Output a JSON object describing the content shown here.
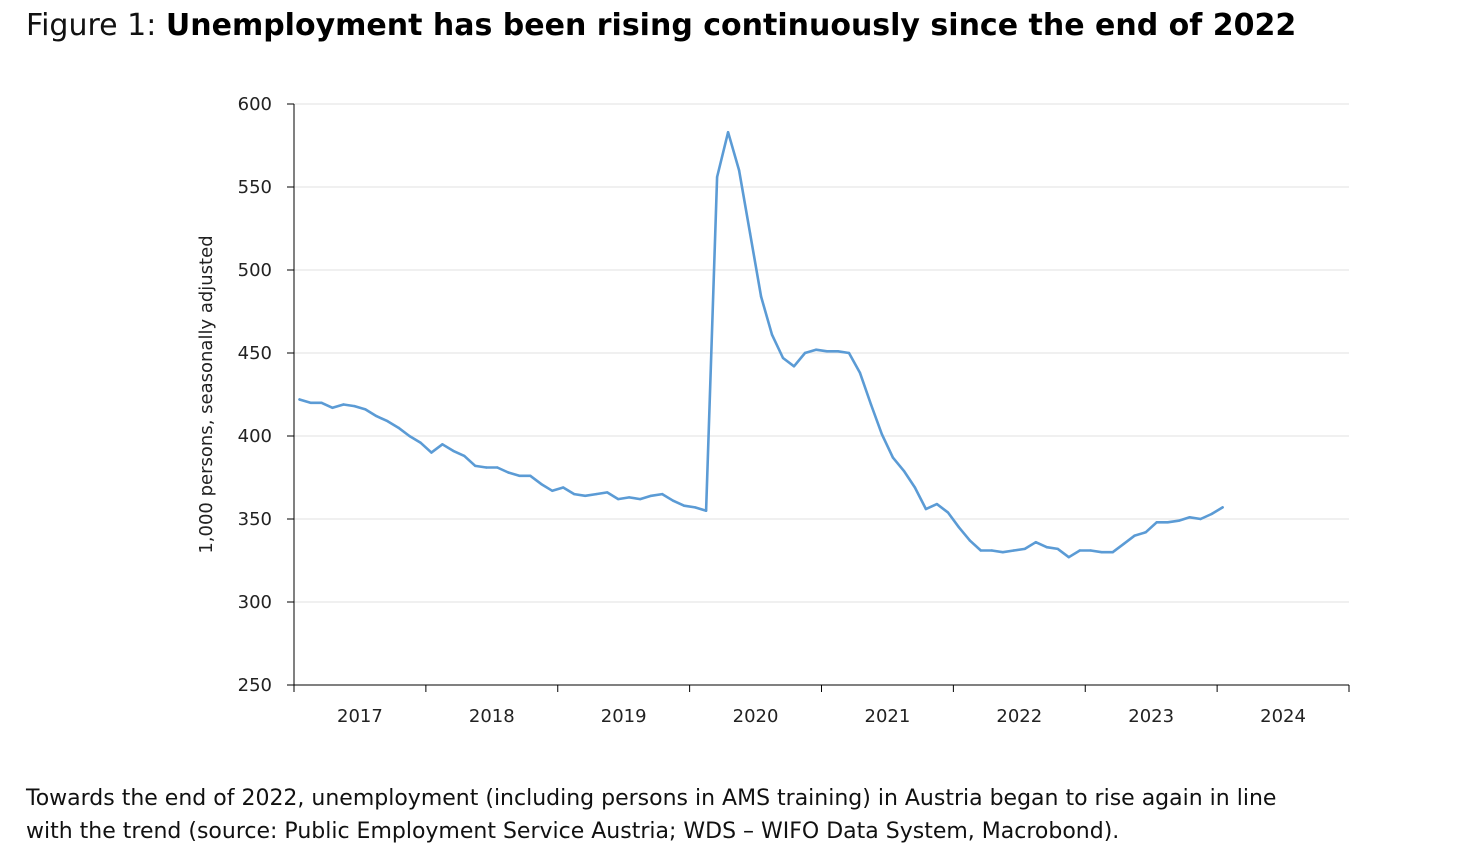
{
  "figure": {
    "label": "Figure 1: ",
    "heading": "Unemployment has been rising continuously since the end of 2022"
  },
  "caption": {
    "line1": "Towards the end of 2022, unemployment (including persons in AMS training) in Austria began to rise again in line",
    "line2": "with the trend (source: Public Employment Service Austria; WDS – WIFO Data System, Macrobond)."
  },
  "colors": {
    "series_line": "#5b9bd5",
    "gridline": "#e6e6e6",
    "axis": "#000000"
  },
  "chart_data": {
    "type": "line",
    "title": "",
    "xlabel": "",
    "ylabel": "1,000 persons, seasonally adjusted",
    "ylim": [
      250,
      600
    ],
    "yticks": [
      250,
      300,
      350,
      400,
      450,
      500,
      550,
      600
    ],
    "xlim": [
      "2017-01",
      "2024-12"
    ],
    "x_tick_labels": [
      "2017",
      "2018",
      "2019",
      "2020",
      "2021",
      "2022",
      "2023",
      "2024"
    ],
    "grid": "horizontal",
    "legend": "none",
    "series": [
      {
        "x": [
          "2017-01",
          "2017-02",
          "2017-03",
          "2017-04",
          "2017-05",
          "2017-06",
          "2017-07",
          "2017-08",
          "2017-09",
          "2017-10",
          "2017-11",
          "2017-12",
          "2018-01",
          "2018-02",
          "2018-03",
          "2018-04",
          "2018-05",
          "2018-06",
          "2018-07",
          "2018-08",
          "2018-09",
          "2018-10",
          "2018-11",
          "2018-12",
          "2019-01",
          "2019-02",
          "2019-03",
          "2019-04",
          "2019-05",
          "2019-06",
          "2019-07",
          "2019-08",
          "2019-09",
          "2019-10",
          "2019-11",
          "2019-12",
          "2020-01",
          "2020-02",
          "2020-03",
          "2020-04",
          "2020-05",
          "2020-06",
          "2020-07",
          "2020-08",
          "2020-09",
          "2020-10",
          "2020-11",
          "2020-12",
          "2021-01",
          "2021-02",
          "2021-03",
          "2021-04",
          "2021-05",
          "2021-06",
          "2021-07",
          "2021-08",
          "2021-09",
          "2021-10",
          "2021-11",
          "2021-12",
          "2022-01",
          "2022-02",
          "2022-03",
          "2022-04",
          "2022-05",
          "2022-06",
          "2022-07",
          "2022-08",
          "2022-09",
          "2022-10",
          "2022-11",
          "2022-12",
          "2023-01",
          "2023-02",
          "2023-03",
          "2023-04",
          "2023-05",
          "2023-06",
          "2023-07",
          "2023-08",
          "2023-09",
          "2023-10",
          "2023-11",
          "2023-12",
          "2024-01"
        ],
        "values": [
          422,
          420,
          420,
          417,
          419,
          418,
          416,
          412,
          409,
          405,
          400,
          396,
          390,
          395,
          391,
          388,
          382,
          381,
          381,
          378,
          376,
          376,
          371,
          367,
          369,
          365,
          364,
          365,
          366,
          362,
          363,
          362,
          364,
          365,
          361,
          358,
          357,
          355,
          556,
          583,
          560,
          522,
          484,
          461,
          447,
          442,
          450,
          452,
          451,
          451,
          450,
          438,
          419,
          401,
          387,
          379,
          369,
          356,
          359,
          354,
          345,
          337,
          331,
          331,
          330,
          331,
          332,
          336,
          333,
          332,
          327,
          331,
          331,
          330,
          330,
          335,
          340,
          342,
          348,
          348,
          349,
          351,
          350,
          353,
          357
        ]
      }
    ]
  }
}
